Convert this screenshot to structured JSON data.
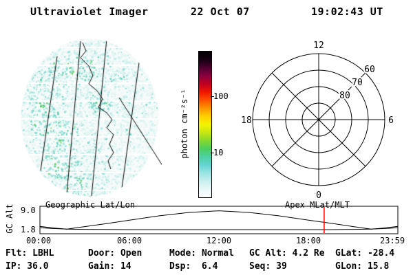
{
  "header": {
    "title": "Ultraviolet Imager",
    "date": "22 Oct 07",
    "time": "19:02:43 UT"
  },
  "colorbar": {
    "label": "photon cm⁻²s⁻¹",
    "tick_top": "100",
    "tick_bottom": "10",
    "scale": "log",
    "stops": [
      "#ffffff",
      "#e8f8f7",
      "#c9efee",
      "#9ae3e4",
      "#63d5d2",
      "#4ed0a4",
      "#4ccf5d",
      "#85d92e",
      "#c8e713",
      "#f4f400",
      "#ffcf00",
      "#ff9400",
      "#ff5000",
      "#ef1600",
      "#c00020",
      "#8a0040",
      "#4c0030",
      "#150012",
      "#000000"
    ]
  },
  "left_panel": {
    "caption": "Geographic Lat/Lon"
  },
  "right_panel": {
    "caption": "Apex MLat/MLT",
    "mlt_top": "12",
    "mlt_left": "18",
    "mlt_right": "6",
    "mlt_bottom": "0",
    "lat_60": "60",
    "lat_70": "70",
    "lat_80": "80"
  },
  "timeline": {
    "ylabel": "GC Alt",
    "ytick_top": "9.0",
    "ytick_bottom": "1.8",
    "xticks": [
      "00:00",
      "06:00",
      "12:00",
      "18:00",
      "23:59"
    ],
    "marker_color": "#ff0000"
  },
  "status": {
    "row1": [
      "Flt: LBHL",
      "Door: Open",
      "Mode: Normal",
      "GC Alt: 4.2 Re",
      "GLat: -28.4"
    ],
    "row2": [
      "IP: 36.0",
      "Gain: 14",
      "Dsp:  6.4",
      "Seq: 39",
      "GLon: 15.8"
    ]
  },
  "chart_data": [
    {
      "type": "heatmap",
      "title": "UV full-disk image, Geographic Lat/Lon projection",
      "units": "photon cm⁻²s⁻¹",
      "colorbar_scale": "log",
      "colorbar_ticks": [
        10,
        100
      ],
      "content": "Faint speckled emission mostly ~1-20 photon cm-2 s-1 (pale cyan to green speckle, denser/greener on left half), geographic meridian lines and coastline overlaid in black, periodic horizontal white scan-gap lines"
    },
    {
      "type": "scatter",
      "title": "Apex MLat/MLT polar grid",
      "points": [],
      "mlt_spoke_hours": [
        0,
        3,
        6,
        9,
        12,
        15,
        18,
        21
      ],
      "mlat_rings": [
        50,
        60,
        70,
        80
      ],
      "note": "empty polar coordinate grid, no auroral data plotted; MLT labels 12 top, 18 left, 6 right, 0 bottom; MLat labels 60/70/80 along NE diagonal"
    },
    {
      "type": "line",
      "title": "GC Alt vs UT",
      "ylabel": "GC Alt",
      "yticks": [
        9.0,
        1.8
      ],
      "xtick_labels": [
        "00:00",
        "06:00",
        "12:00",
        "18:00",
        "23:59"
      ],
      "x_max": 23.983,
      "series": [
        {
          "name": "upper-arc",
          "x": [
            0,
            0.9,
            1.8,
            3,
            4.5,
            6,
            8,
            10,
            12,
            14,
            16,
            18,
            19.5,
            21,
            22.2,
            23.1,
            23.98
          ],
          "values": [
            3.0,
            2.4,
            2.0,
            2.9,
            4.0,
            5.2,
            6.8,
            8.0,
            8.6,
            8.0,
            6.8,
            5.2,
            4.1,
            2.9,
            2.0,
            2.4,
            3.0
          ]
        },
        {
          "name": "lower-arc",
          "x": [
            0,
            0.9,
            1.8,
            3,
            4.5,
            6,
            8,
            10,
            12,
            14,
            16,
            18,
            19.5,
            21,
            22.2,
            23.1,
            23.98
          ],
          "values": [
            2.5,
            2.2,
            2.0,
            1.9,
            1.85,
            1.8,
            1.8,
            1.8,
            1.8,
            1.8,
            1.8,
            1.8,
            1.8,
            1.9,
            2.0,
            2.2,
            2.5
          ]
        }
      ],
      "marker_hour": 19.045,
      "marker_note": "red vertical line at current time 19:02:43 UT, GC Alt 4.2 Re"
    }
  ]
}
